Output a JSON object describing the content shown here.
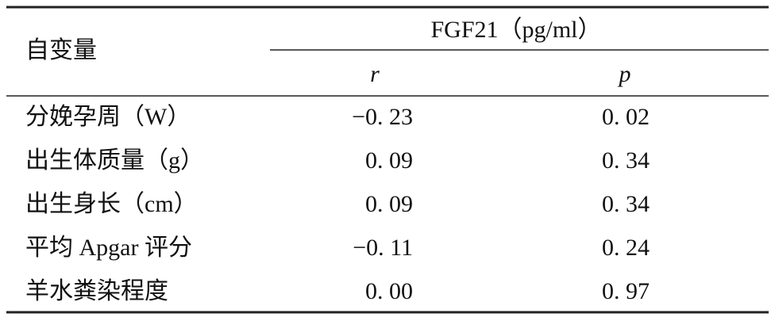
{
  "table": {
    "header": {
      "row_label": "自变量",
      "group": "FGF21（pg/ml）",
      "columns": [
        "r",
        "p"
      ]
    },
    "rows": [
      [
        "分娩孕周（W）",
        "−0. 23",
        "0. 02"
      ],
      [
        "出生体质量（g）",
        "0. 09",
        "0. 34"
      ],
      [
        "出生身长（cm）",
        "0. 09",
        "0. 34"
      ],
      [
        "平均 Apgar 评分",
        "−0. 11",
        "0. 24"
      ],
      [
        "羊水粪染程度",
        "0. 00",
        "0. 97"
      ]
    ]
  }
}
